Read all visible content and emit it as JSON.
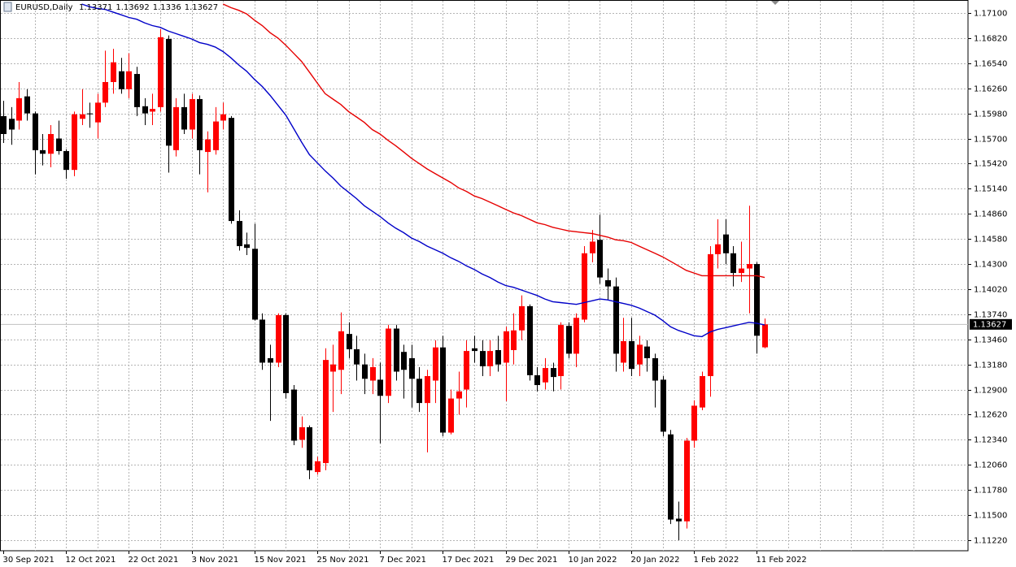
{
  "chart_data": {
    "type": "candlestick",
    "title": "EURUSD,Daily",
    "categories": [
      "30 Sep 2021",
      null,
      null,
      null,
      null,
      null,
      null,
      null,
      "12 Oct 2021",
      null,
      null,
      null,
      null,
      null,
      null,
      null,
      "22 Oct 2021",
      null,
      null,
      null,
      null,
      null,
      null,
      null,
      "3 Nov 2021",
      null,
      null,
      null,
      null,
      null,
      null,
      null,
      "15 Nov 2021",
      null,
      null,
      null,
      null,
      null,
      null,
      null,
      "25 Nov 2021",
      null,
      null,
      null,
      null,
      null,
      null,
      null,
      "7 Dec 2021",
      null,
      null,
      null,
      null,
      null,
      null,
      null,
      "17 Dec 2021",
      null,
      null,
      null,
      null,
      null,
      null,
      null,
      "29 Dec 2021",
      null,
      null,
      null,
      null,
      null,
      null,
      null,
      "10 Jan 2022",
      null,
      null,
      null,
      null,
      null,
      null,
      null,
      "20 Jan 2022",
      null,
      null,
      null,
      null,
      null,
      null,
      null,
      "1 Feb 2022",
      null,
      null,
      null,
      null,
      null,
      null,
      null,
      "11 Feb 2022",
      null
    ],
    "open": [
      1.1595,
      1.1592,
      1.159,
      1.1617,
      1.1598,
      1.1557,
      1.1553,
      1.157,
      1.1556,
      1.1535,
      1.1592,
      1.1598,
      1.1588,
      1.161,
      1.1633,
      1.1645,
      1.1625,
      1.1642,
      1.1606,
      1.16,
      1.1605,
      1.1681,
      1.1557,
      1.1605,
      1.158,
      1.1614,
      1.1555,
      1.1557,
      1.159,
      1.1593,
      1.1478,
      1.1452,
      1.1447,
      1.1368,
      1.1325,
      1.132,
      1.1373,
      1.129,
      1.1234,
      1.1248,
      1.1198,
      1.1208,
      1.131,
      1.1312,
      1.1352,
      1.1335,
      1.1318,
      1.13,
      1.1301,
      1.1283,
      1.1358,
      1.1332,
      1.1325,
      1.1302,
      1.1275,
      1.13,
      1.1337,
      1.1242,
      1.128,
      1.129,
      1.1336,
      1.1333,
      1.1316,
      1.1334,
      1.132,
      1.1334,
      1.1356,
      1.1383,
      1.1306,
      1.1298,
      1.1314,
      1.1305,
      1.1361,
      1.133,
      1.1368,
      1.1442,
      1.1457,
      1.1412,
      1.1405,
      1.132,
      1.1344,
      1.1318,
      1.1338,
      1.1325,
      1.1301,
      1.124,
      1.1146,
      1.1143,
      1.1233,
      1.127,
      1.1305,
      1.1441,
      1.1463,
      1.1442,
      1.142,
      1.1425,
      1.143,
      1.13371
    ],
    "high": [
      1.1612,
      1.1605,
      1.1633,
      1.1625,
      1.16,
      1.1575,
      1.1585,
      1.159,
      1.1558,
      1.16,
      1.1625,
      1.161,
      1.162,
      1.1668,
      1.167,
      1.166,
      1.1665,
      1.165,
      1.1615,
      1.162,
      1.1692,
      1.1685,
      1.1615,
      1.162,
      1.162,
      1.1618,
      1.1578,
      1.1605,
      1.161,
      1.1595,
      1.149,
      1.1465,
      1.1475,
      1.1375,
      1.134,
      1.1375,
      1.1375,
      1.1295,
      1.126,
      1.125,
      1.1215,
      1.1336,
      1.134,
      1.1376,
      1.1365,
      1.135,
      1.133,
      1.1325,
      1.132,
      1.1362,
      1.1362,
      1.134,
      1.134,
      1.1315,
      1.1312,
      1.1345,
      1.135,
      1.129,
      1.131,
      1.1345,
      1.135,
      1.1345,
      1.1345,
      1.135,
      1.136,
      1.1375,
      1.1395,
      1.1385,
      1.1315,
      1.1325,
      1.132,
      1.1365,
      1.1365,
      1.1375,
      1.145,
      1.1468,
      1.1485,
      1.1425,
      1.1415,
      1.137,
      1.137,
      1.135,
      1.1345,
      1.133,
      1.1305,
      1.1245,
      1.1165,
      1.1236,
      1.1278,
      1.131,
      1.145,
      1.148,
      1.148,
      1.145,
      1.1455,
      1.1495,
      1.1432,
      1.13692
    ],
    "low": [
      1.1565,
      1.1563,
      1.158,
      1.159,
      1.153,
      1.154,
      1.1538,
      1.1552,
      1.1525,
      1.1528,
      1.1585,
      1.1582,
      1.157,
      1.1605,
      1.162,
      1.162,
      1.1615,
      1.1595,
      1.1585,
      1.1585,
      1.16,
      1.1532,
      1.155,
      1.1575,
      1.157,
      1.153,
      1.151,
      1.1552,
      1.158,
      1.1475,
      1.1445,
      1.144,
      1.1367,
      1.1312,
      1.1255,
      1.1315,
      1.128,
      1.1228,
      1.1225,
      1.119,
      1.1195,
      1.12,
      1.1265,
      1.1285,
      1.1325,
      1.13,
      1.1285,
      1.1285,
      1.123,
      1.1275,
      1.13,
      1.128,
      1.127,
      1.1265,
      1.122,
      1.1275,
      1.1238,
      1.124,
      1.1262,
      1.127,
      1.132,
      1.1305,
      1.1305,
      1.131,
      1.1277,
      1.1318,
      1.1345,
      1.13,
      1.1288,
      1.129,
      1.1288,
      1.129,
      1.1325,
      1.1315,
      1.1365,
      1.1432,
      1.1408,
      1.139,
      1.131,
      1.131,
      1.1305,
      1.1305,
      1.131,
      1.127,
      1.1238,
      1.114,
      1.1122,
      1.1135,
      1.1225,
      1.1267,
      1.1282,
      1.1425,
      1.143,
      1.1405,
      1.141,
      1.1375,
      1.133,
      1.1336
    ],
    "close": [
      1.1575,
      1.158,
      1.1615,
      1.1598,
      1.1557,
      1.1553,
      1.1575,
      1.1556,
      1.1535,
      1.1597,
      1.1597,
      1.1597,
      1.161,
      1.1633,
      1.1655,
      1.1625,
      1.1645,
      1.1605,
      1.1598,
      1.1603,
      1.1683,
      1.1562,
      1.1605,
      1.158,
      1.1614,
      1.1557,
      1.1569,
      1.1589,
      1.1597,
      1.1478,
      1.145,
      1.1448,
      1.1368,
      1.132,
      1.132,
      1.1373,
      1.1286,
      1.1233,
      1.1248,
      1.12,
      1.121,
      1.1323,
      1.1318,
      1.1355,
      1.1335,
      1.1318,
      1.1302,
      1.1315,
      1.1283,
      1.1358,
      1.131,
      1.1312,
      1.1302,
      1.1275,
      1.1305,
      1.1337,
      1.1242,
      1.128,
      1.1288,
      1.1333,
      1.1333,
      1.1316,
      1.1333,
      1.1318,
      1.1355,
      1.1356,
      1.1383,
      1.1306,
      1.1295,
      1.1314,
      1.1304,
      1.1362,
      1.133,
      1.137,
      1.1442,
      1.1455,
      1.1415,
      1.1405,
      1.133,
      1.1344,
      1.1313,
      1.134,
      1.1325,
      1.13,
      1.1243,
      1.1145,
      1.1143,
      1.1233,
      1.1272,
      1.1305,
      1.1441,
      1.1452,
      1.1442,
      1.142,
      1.1425,
      1.143,
      1.135,
      1.13627
    ],
    "up_color": "#ff0000",
    "down_color": "#000000",
    "series": [
      {
        "color": "#0000c8",
        "values": [
          null,
          null,
          null,
          null,
          null,
          null,
          null,
          null,
          null,
          null,
          1.172,
          1.1717,
          1.1715,
          1.1714,
          1.1711,
          1.1708,
          1.1705,
          1.1703,
          1.1699,
          1.1696,
          1.1694,
          1.169,
          1.1687,
          1.1684,
          1.1681,
          1.1677,
          1.1675,
          1.1672,
          1.1667,
          1.166,
          1.1652,
          1.1645,
          1.1636,
          1.1628,
          1.1618,
          1.1607,
          1.1596,
          1.1581,
          1.1566,
          1.1552,
          1.1543,
          1.1534,
          1.1526,
          1.1517,
          1.151,
          1.1503,
          1.1495,
          1.1489,
          1.1483,
          1.1476,
          1.147,
          1.1465,
          1.1459,
          1.1455,
          1.145,
          1.1446,
          1.1442,
          1.1437,
          1.1433,
          1.1428,
          1.1424,
          1.1419,
          1.1415,
          1.141,
          1.1406,
          1.1404,
          1.1401,
          1.1398,
          1.1395,
          1.1391,
          1.1388,
          1.1387,
          1.1386,
          1.1385,
          1.1387,
          1.1389,
          1.1391,
          1.139,
          1.1388,
          1.1386,
          1.1384,
          1.1381,
          1.1377,
          1.1373,
          1.1367,
          1.136,
          1.1356,
          1.1353,
          1.135,
          1.1349,
          1.1354,
          1.1357,
          1.1359,
          1.1361,
          1.1363,
          1.1365,
          1.1364,
          1.1362
        ]
      },
      {
        "color": "#e60000",
        "values": [
          null,
          null,
          null,
          null,
          null,
          null,
          null,
          null,
          null,
          null,
          null,
          null,
          null,
          null,
          null,
          null,
          null,
          null,
          null,
          null,
          null,
          null,
          null,
          null,
          null,
          null,
          null,
          null,
          1.172,
          1.1716,
          1.1713,
          1.1709,
          1.1702,
          1.1696,
          1.1688,
          1.1682,
          1.1674,
          1.1665,
          1.1656,
          1.1644,
          1.1632,
          1.162,
          1.1614,
          1.1608,
          1.16,
          1.1594,
          1.1588,
          1.158,
          1.1575,
          1.1568,
          1.1562,
          1.1555,
          1.1548,
          1.1542,
          1.1536,
          1.1531,
          1.1526,
          1.1521,
          1.1515,
          1.1511,
          1.1506,
          1.1503,
          1.1499,
          1.1495,
          1.1491,
          1.1487,
          1.1484,
          1.148,
          1.1476,
          1.1474,
          1.1471,
          1.1469,
          1.1467,
          1.1466,
          1.1465,
          1.1464,
          1.1462,
          1.146,
          1.1457,
          1.1456,
          1.1454,
          1.145,
          1.1446,
          1.1442,
          1.1438,
          1.1433,
          1.1428,
          1.1423,
          1.142,
          1.1417,
          1.1417,
          1.1417,
          1.1417,
          1.1417,
          1.1417,
          1.1417,
          1.1417,
          1.1415
        ]
      }
    ],
    "ylim": [
      1.11102,
      1.17245
    ],
    "yticks": [
      {
        "value": 1.171,
        "label": "1.17100"
      },
      {
        "value": 1.1682,
        "label": "1.16820"
      },
      {
        "value": 1.1654,
        "label": "1.16540"
      },
      {
        "value": 1.1626,
        "label": "1.16260"
      },
      {
        "value": 1.1598,
        "label": "1.15980"
      },
      {
        "value": 1.157,
        "label": "1.15700"
      },
      {
        "value": 1.1542,
        "label": "1.15420"
      },
      {
        "value": 1.1514,
        "label": "1.15140"
      },
      {
        "value": 1.1486,
        "label": "1.14860"
      },
      {
        "value": 1.1458,
        "label": "1.14580"
      },
      {
        "value": 1.143,
        "label": "1.14300"
      },
      {
        "value": 1.1402,
        "label": "1.14020"
      },
      {
        "value": 1.1374,
        "label": "1.13740"
      },
      {
        "value": 1.1346,
        "label": "1.13460"
      },
      {
        "value": 1.1318,
        "label": "1.13180"
      },
      {
        "value": 1.129,
        "label": "1.12900"
      },
      {
        "value": 1.1262,
        "label": "1.12620"
      },
      {
        "value": 1.1234,
        "label": "1.12340"
      },
      {
        "value": 1.1206,
        "label": "1.12060"
      },
      {
        "value": 1.1178,
        "label": "1.11780"
      },
      {
        "value": 1.115,
        "label": "1.11500"
      },
      {
        "value": 1.1122,
        "label": "1.11220"
      }
    ],
    "last_price": 1.13627,
    "grid": true
  }
}
